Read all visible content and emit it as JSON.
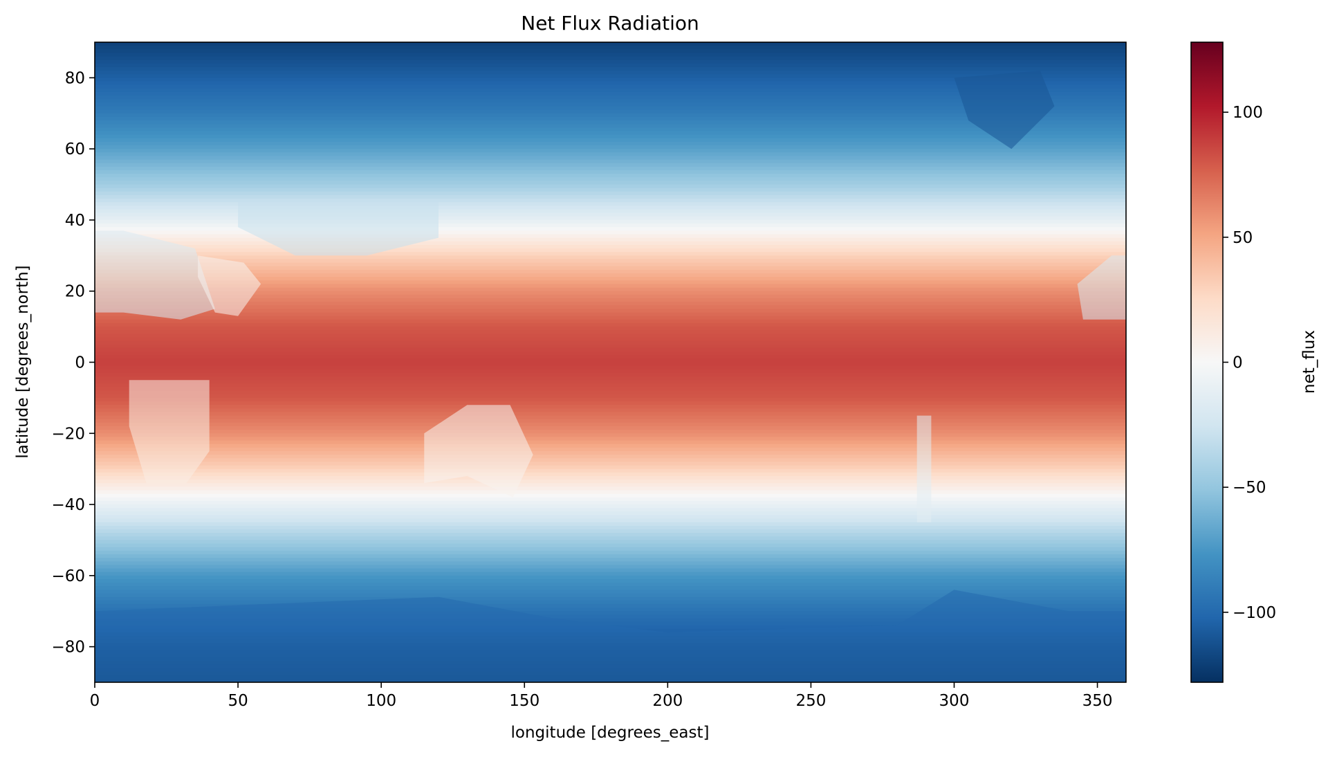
{
  "chart_data": {
    "type": "heatmap",
    "title": "Net Flux Radiation",
    "xlabel": "longitude [degrees_east]",
    "ylabel": "latitude [degrees_north]",
    "xlim": [
      0,
      360
    ],
    "ylim": [
      -90,
      90
    ],
    "xticks": [
      0,
      50,
      100,
      150,
      200,
      250,
      300,
      350
    ],
    "xtick_labels": [
      "0",
      "50",
      "100",
      "150",
      "200",
      "250",
      "300",
      "350"
    ],
    "yticks": [
      80,
      60,
      40,
      20,
      0,
      -20,
      -40,
      -60,
      -80
    ],
    "ytick_labels": [
      "80",
      "60",
      "40",
      "20",
      "0",
      "−20",
      "−40",
      "−60",
      "−80"
    ],
    "grid": false,
    "colorbar": {
      "label": "net_flux",
      "colormap": "RdBu_r",
      "vmin": -128,
      "vmax": 128,
      "ticks": [
        100,
        50,
        0,
        -50,
        -100
      ],
      "tick_labels": [
        "100",
        "50",
        "0",
        "−50",
        "−100"
      ],
      "colors": [
        "#053061",
        "#2166ac",
        "#4393c3",
        "#92c5de",
        "#d1e5f0",
        "#f7f7f7",
        "#fddbc7",
        "#f4a582",
        "#d6604d",
        "#b2182b",
        "#67001f"
      ]
    },
    "zonal_mean_profile": {
      "latitude": [
        90,
        80,
        70,
        60,
        50,
        40,
        30,
        20,
        10,
        0,
        -10,
        -20,
        -30,
        -40,
        -50,
        -60,
        -70,
        -80,
        -90
      ],
      "value": [
        -120,
        -105,
        -90,
        -70,
        -45,
        -12,
        30,
        60,
        80,
        88,
        80,
        60,
        30,
        -10,
        -45,
        -75,
        -95,
        -110,
        -118
      ]
    }
  }
}
